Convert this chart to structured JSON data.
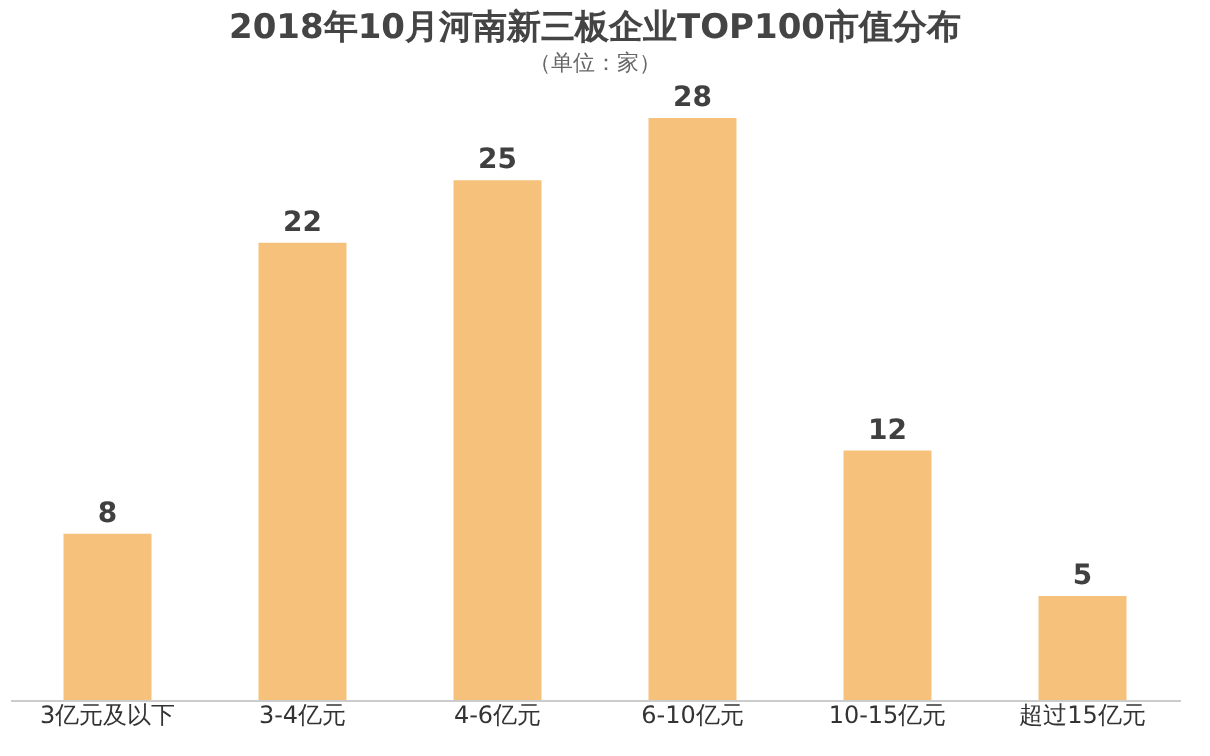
{
  "chart_data": {
    "type": "bar",
    "title": "2018年10月河南新三板企业TOP100市值分布",
    "subtitle": "（单位：家）",
    "categories": [
      "3亿元及以下",
      "3-4亿元",
      "4-6亿元",
      "6-10亿元",
      "10-15亿元",
      "超过15亿元"
    ],
    "values": [
      8,
      22,
      25,
      28,
      12,
      5
    ],
    "color": "#f5c17b",
    "data_labels": true
  }
}
